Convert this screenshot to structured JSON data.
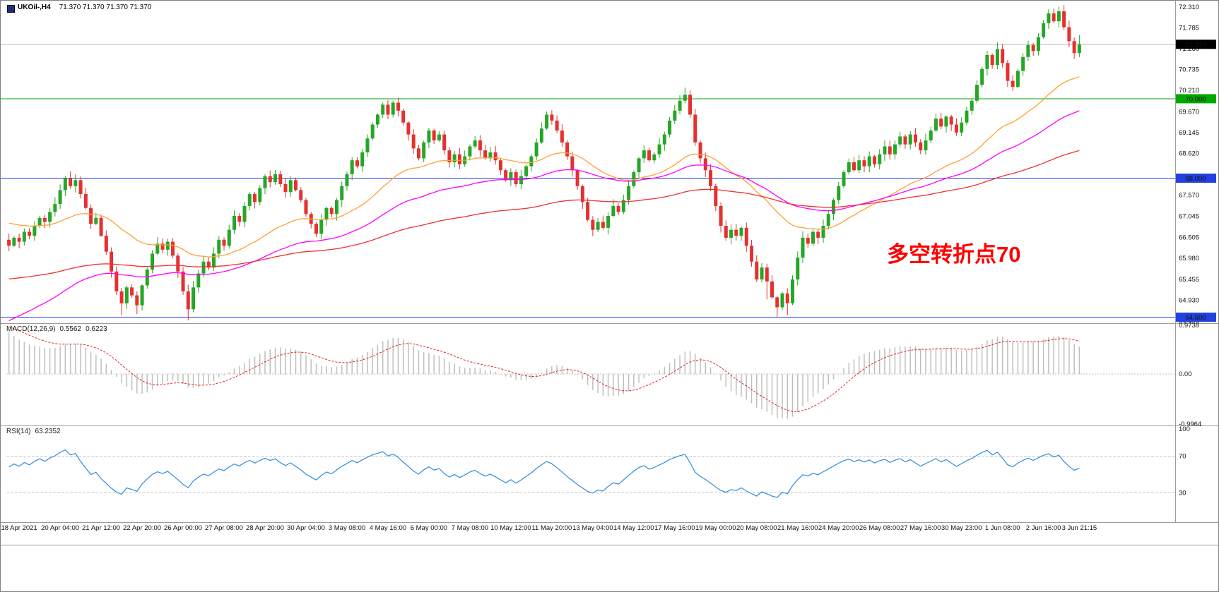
{
  "window": {
    "title_symbol": "UKOil-,H4",
    "title_ohlc": "71.370 71.370 71.370 71.370"
  },
  "annotation": {
    "text": "多空转折点70",
    "color": "#FF0000"
  },
  "indicators": {
    "macd": {
      "label": "MACD(12,26,9)",
      "value_main": "0.5562",
      "value_signal": "0.6223",
      "axis": [
        "0.9738",
        "0.00",
        "-0.9964"
      ]
    },
    "rsi": {
      "label": "RSI(14)",
      "value": "63.2352",
      "axis": [
        "100",
        "70",
        "30"
      ]
    }
  },
  "colors": {
    "up": "#26A626",
    "down": "#E53030",
    "macd_hist": "#BFBFBF",
    "macd_signal": "#E02020",
    "rsi": "#2E8BE0",
    "level_dash": "#C8C8C8",
    "current_line": "#B8B8B8",
    "current_badge": "#000000"
  },
  "price_axis": {
    "labels": [
      "72.310",
      "71.785",
      "71.260",
      "70.735",
      "70.210",
      "69.670",
      "69.145",
      "68.620",
      "67.570",
      "67.045",
      "66.505",
      "65.980",
      "65.455",
      "64.930",
      "64.405"
    ],
    "current": {
      "label": "71.370",
      "price": 71.37
    },
    "levels": [
      {
        "label": "70.000",
        "price": 70.0,
        "color": "#00A800"
      },
      {
        "label": "68.000",
        "price": 68.0,
        "color": "#2341E0"
      },
      {
        "label": "64.500",
        "price": 64.5,
        "color": "#2341E0"
      }
    ]
  },
  "time_axis": {
    "labels": [
      "18 Apr 2021",
      "20 Apr 04:00",
      "21 Apr 12:00",
      "22 Apr 20:00",
      "26 Apr 00:00",
      "27 Apr 08:00",
      "28 Apr 20:00",
      "30 Apr 04:00",
      "3 May 08:00",
      "4 May 16:00",
      "6 May 00:00",
      "7 May 08:00",
      "10 May 12:00",
      "11 May 20:00",
      "13 May 04:00",
      "14 May 12:00",
      "17 May 16:00",
      "19 May 00:00",
      "20 May 08:00",
      "21 May 16:00",
      "24 May 20:00",
      "26 May 08:00",
      "27 May 16:00",
      "30 May 23:00",
      "1 Jun 08:00",
      "2 Jun 16:00",
      "3 Jun 21:15"
    ]
  },
  "chart_data": {
    "type": "candlestick",
    "symbol": "UKOil-",
    "timeframe": "H4",
    "title": "UKOil-,H4 71.370 71.370 71.370 71.370",
    "ylim": [
      64.35,
      72.45
    ],
    "macd_ylim": [
      -0.9964,
      0.9738
    ],
    "rsi_levels": [
      70,
      30
    ],
    "open_first": 66.45,
    "closes": [
      66.3,
      66.5,
      66.4,
      66.65,
      66.55,
      66.8,
      67.0,
      66.9,
      67.15,
      67.35,
      67.7,
      68.0,
      67.8,
      67.95,
      67.6,
      67.25,
      66.85,
      67.0,
      66.55,
      66.15,
      65.65,
      65.15,
      64.85,
      65.25,
      65.05,
      64.8,
      65.3,
      65.7,
      66.1,
      66.35,
      66.2,
      66.4,
      66.05,
      65.65,
      65.15,
      64.7,
      65.25,
      65.6,
      65.9,
      65.75,
      66.1,
      66.45,
      66.3,
      66.7,
      67.05,
      66.9,
      67.3,
      67.6,
      67.4,
      67.75,
      68.05,
      67.9,
      68.1,
      67.85,
      67.65,
      67.95,
      67.7,
      67.45,
      67.1,
      66.85,
      66.6,
      66.95,
      67.25,
      67.1,
      67.45,
      67.8,
      68.1,
      68.45,
      68.3,
      68.65,
      69.0,
      69.35,
      69.6,
      69.85,
      69.6,
      69.9,
      69.7,
      69.4,
      69.1,
      68.75,
      68.5,
      68.9,
      69.2,
      68.95,
      69.1,
      68.7,
      68.4,
      68.6,
      68.35,
      68.55,
      68.8,
      68.95,
      68.7,
      68.5,
      68.65,
      68.45,
      68.2,
      67.95,
      68.15,
      67.85,
      68.05,
      68.3,
      68.55,
      68.9,
      69.25,
      69.6,
      69.45,
      69.2,
      68.9,
      68.55,
      68.2,
      67.8,
      67.4,
      66.95,
      66.7,
      66.9,
      66.75,
      67.05,
      67.3,
      67.15,
      67.45,
      67.8,
      68.15,
      68.5,
      68.7,
      68.45,
      68.6,
      68.85,
      69.1,
      69.45,
      69.7,
      69.95,
      70.1,
      69.6,
      68.9,
      68.5,
      68.2,
      67.8,
      67.3,
      66.8,
      66.5,
      66.7,
      66.55,
      66.75,
      66.3,
      65.9,
      65.45,
      65.75,
      65.4,
      65.0,
      64.75,
      65.1,
      64.85,
      65.45,
      66.0,
      66.5,
      66.35,
      66.65,
      66.5,
      66.8,
      67.1,
      67.45,
      67.8,
      68.15,
      68.4,
      68.2,
      68.45,
      68.3,
      68.55,
      68.35,
      68.6,
      68.8,
      68.6,
      68.85,
      69.05,
      68.85,
      69.1,
      68.9,
      68.7,
      68.95,
      69.2,
      69.5,
      69.3,
      69.55,
      69.35,
      69.15,
      69.4,
      69.7,
      69.95,
      70.35,
      70.75,
      71.1,
      70.85,
      71.25,
      70.9,
      70.45,
      70.3,
      70.7,
      71.05,
      71.35,
      71.2,
      71.55,
      71.9,
      72.15,
      71.95,
      72.2,
      71.8,
      71.45,
      71.15,
      71.37
    ],
    "extremes": {
      "22": {
        "l": 64.55
      },
      "25": {
        "l": 64.58
      },
      "35": {
        "l": 64.42
      },
      "132": {
        "h": 70.28
      },
      "148": {
        "l": 64.95
      },
      "150": {
        "l": 64.5
      },
      "152": {
        "l": 64.55
      },
      "203": {
        "h": 72.25
      },
      "205": {
        "h": 72.31
      },
      "209": {
        "h": 71.6,
        "l": 71.05
      }
    },
    "overlays": [
      {
        "name": "ma-fast-orange",
        "color": "#FFA033",
        "period": 34,
        "seed": 66.9
      },
      {
        "name": "ma-mid-magenta",
        "color": "#FF00FF",
        "period": 64,
        "seed": 64.35
      },
      {
        "name": "ma-slow-red",
        "color": "#F03030",
        "period": 140,
        "seed": 65.45
      }
    ],
    "macd": {
      "fast": 12,
      "slow": 26,
      "signal": 9,
      "seed_fast": 66.75,
      "seed_slow": 65.8,
      "seed_signal": 0.97
    },
    "rsi": {
      "period": 14,
      "seed_gain": 0.105,
      "seed_loss": 0.075
    }
  }
}
